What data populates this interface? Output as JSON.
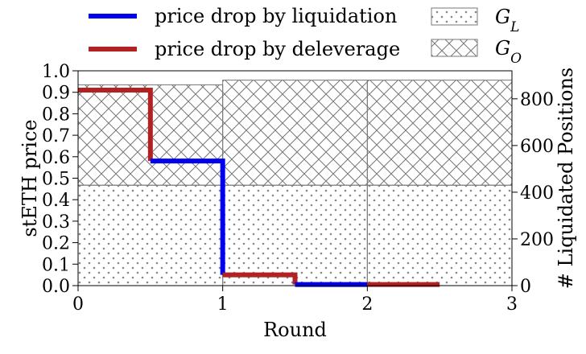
{
  "chart_data": {
    "type": "line",
    "xlabel": "Round",
    "ylabel": "stETH price",
    "y2label": "# Liquidated Positions",
    "xlim": [
      0,
      3
    ],
    "ylim": [
      0.0,
      1.0
    ],
    "y2lim": [
      0,
      920
    ],
    "x_ticks": [
      "0",
      "1",
      "2",
      "3"
    ],
    "y_ticks": [
      "0.0",
      "0.1",
      "0.2",
      "0.3",
      "0.4",
      "0.5",
      "0.6",
      "0.7",
      "0.8",
      "0.9",
      "1.0"
    ],
    "y2_ticks": [
      "0",
      "200",
      "400",
      "600",
      "800"
    ],
    "legend": {
      "placement": "top",
      "lines": [
        {
          "label": "price drop by liquidation",
          "color": "#0000ee"
        },
        {
          "label": "price drop by deleverage",
          "color": "#b22222"
        }
      ],
      "patches": [
        {
          "label_main": "G",
          "label_sub": "L",
          "hatch": "dots"
        },
        {
          "label_main": "G",
          "label_sub": "O",
          "hatch": "crosshatch"
        }
      ]
    },
    "line_segments": [
      {
        "series": "deleverage",
        "color": "#b22222",
        "points": [
          [
            0,
            0.91
          ],
          [
            0.5,
            0.91
          ],
          [
            0.5,
            0.58
          ]
        ]
      },
      {
        "series": "liquidation",
        "color": "#0000ee",
        "points": [
          [
            0.5,
            0.58
          ],
          [
            1.0,
            0.58
          ],
          [
            1.0,
            0.05
          ]
        ]
      },
      {
        "series": "deleverage",
        "color": "#b22222",
        "points": [
          [
            1.0,
            0.05
          ],
          [
            1.5,
            0.05
          ],
          [
            1.5,
            0.005
          ]
        ]
      },
      {
        "series": "liquidation",
        "color": "#0000ee",
        "points": [
          [
            1.5,
            0.005
          ],
          [
            2.0,
            0.005
          ]
        ]
      },
      {
        "series": "deleverage",
        "color": "#b22222",
        "points": [
          [
            2.0,
            0.005
          ],
          [
            2.5,
            0.005
          ]
        ]
      }
    ],
    "bars": [
      {
        "x0": 0,
        "x1": 1,
        "G_L": 430,
        "G_O": 430
      },
      {
        "x0": 1,
        "x1": 2,
        "G_L": 430,
        "G_O": 450
      },
      {
        "x0": 2,
        "x1": 3,
        "G_L": 430,
        "G_O": 450
      }
    ]
  }
}
